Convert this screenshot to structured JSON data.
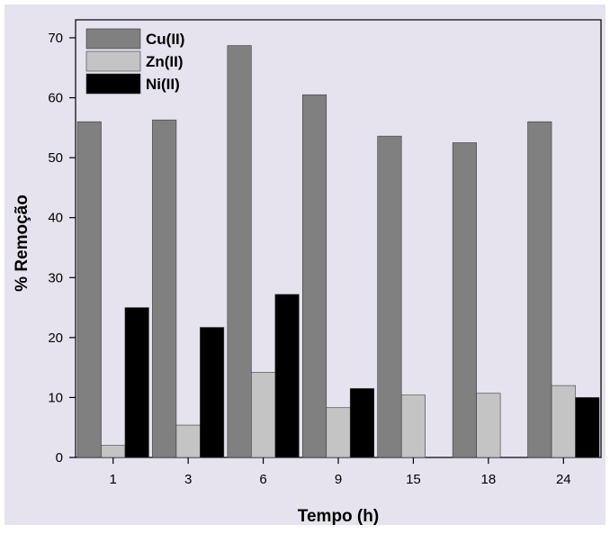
{
  "chart_data": {
    "type": "bar",
    "xlabel": "Tempo (h)",
    "ylabel": "% Remoção",
    "categories": [
      "1",
      "3",
      "6",
      "9",
      "15",
      "18",
      "24"
    ],
    "ylim": [
      0,
      73
    ],
    "yticks": [
      0,
      10,
      20,
      30,
      40,
      50,
      60,
      70
    ],
    "grid": false,
    "legend_position": "top-left",
    "series": [
      {
        "name": "Cu(II)",
        "color": "#808080",
        "values": [
          56,
          56.3,
          68.7,
          60.5,
          53.6,
          52.5,
          56
        ]
      },
      {
        "name": "Zn(II)",
        "color": "#c4c4c4",
        "values": [
          2,
          5.4,
          14.2,
          8.3,
          10.4,
          10.7,
          12
        ]
      },
      {
        "name": "Ni(II)",
        "color": "#000000",
        "values": [
          25,
          21.7,
          27.2,
          11.5,
          null,
          null,
          10
        ]
      }
    ],
    "colors": {
      "panel_background": "#e6e3ee"
    }
  }
}
